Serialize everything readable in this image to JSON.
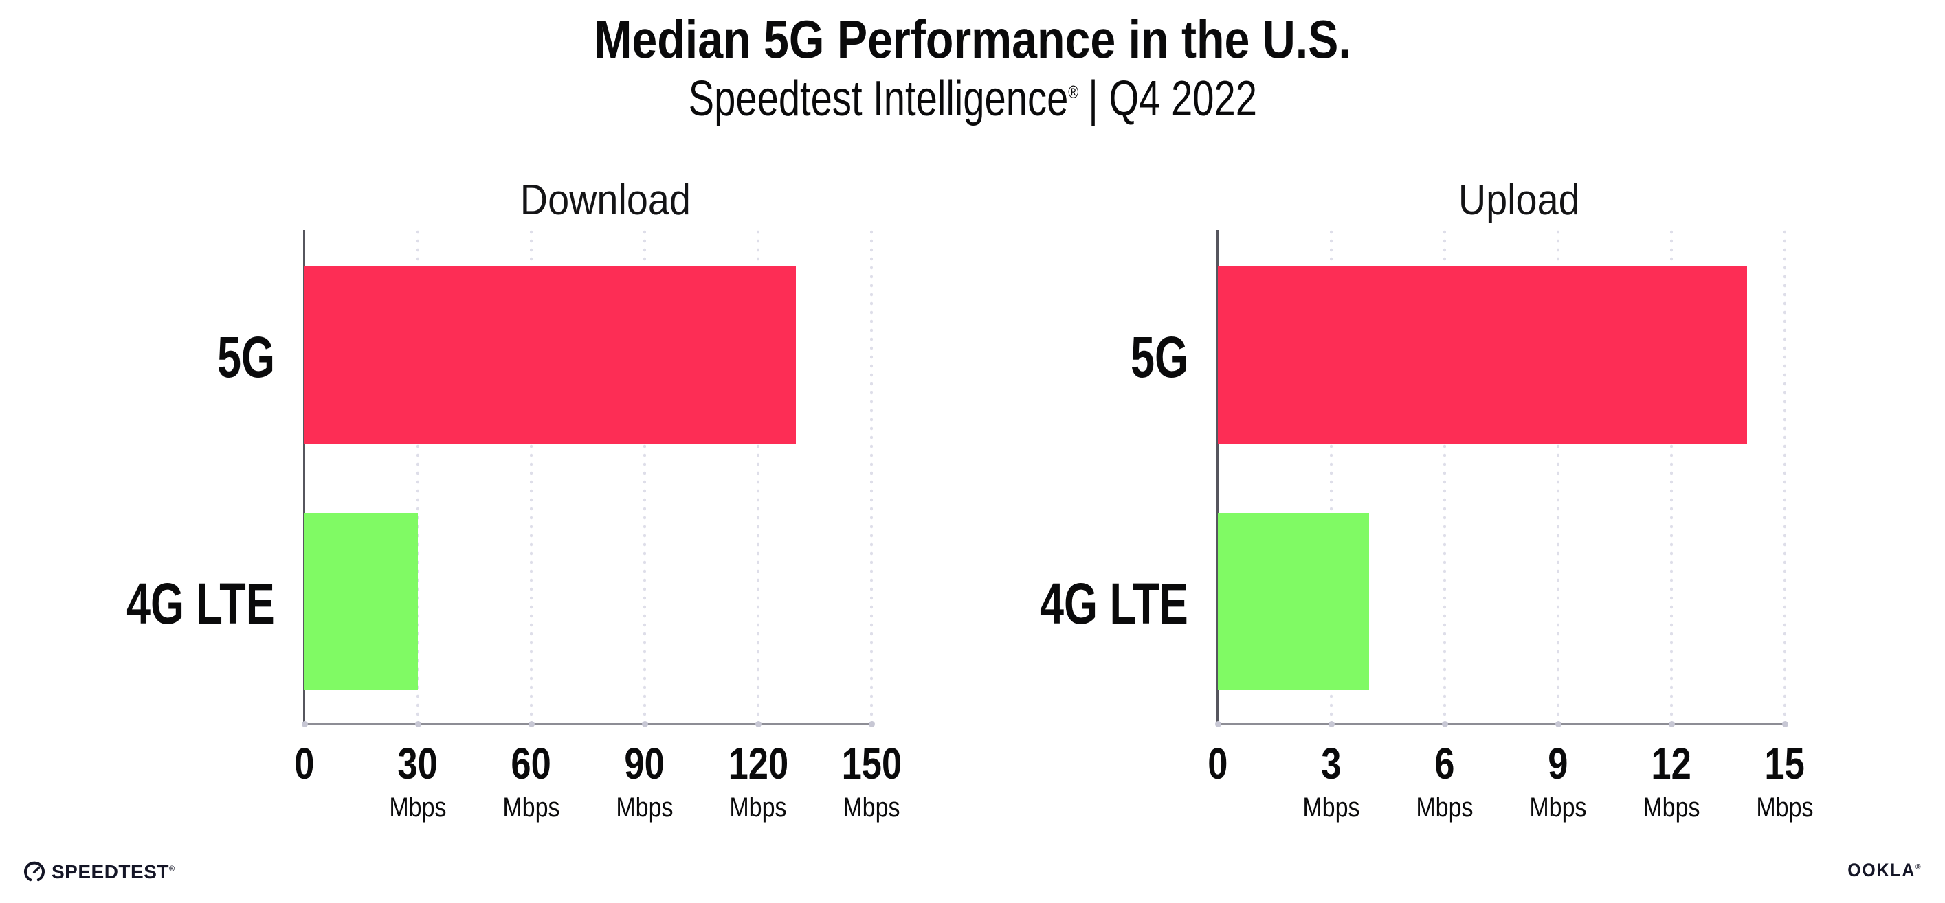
{
  "header": {
    "title": "Median 5G Performance in the U.S.",
    "subtitle_brand": "Speedtest Intelligence",
    "registered_mark": "®",
    "subtitle_rest": "| Q4 2022"
  },
  "colors": {
    "bar_5g": "#fd2d55",
    "bar_4g_lte": "#80fa64",
    "text": "#0a0a0b",
    "axis_line": "#8d8d95",
    "grid_dot": "#dedee9"
  },
  "chart_data": [
    {
      "type": "bar",
      "orientation": "horizontal",
      "title": "Download",
      "categories": [
        "5G",
        "4G LTE"
      ],
      "values": [
        130,
        30
      ],
      "unit": "Mbps",
      "xlim": [
        0,
        150
      ],
      "xticks": [
        0,
        30,
        60,
        90,
        120,
        150
      ],
      "bar_colors": [
        "#fd2d55",
        "#80fa64"
      ],
      "grid": "vertical-dotted",
      "legend": "none"
    },
    {
      "type": "bar",
      "orientation": "horizontal",
      "title": "Upload",
      "categories": [
        "5G",
        "4G LTE"
      ],
      "values": [
        14,
        4
      ],
      "unit": "Mbps",
      "xlim": [
        0,
        15
      ],
      "xticks": [
        0,
        3,
        6,
        9,
        12,
        15
      ],
      "bar_colors": [
        "#fd2d55",
        "#80fa64"
      ],
      "grid": "vertical-dotted",
      "legend": "none"
    }
  ],
  "footer": {
    "speedtest_label": "SPEEDTEST",
    "speedtest_mark": "®",
    "ookla_label": "OOKLA",
    "ookla_mark": "®"
  }
}
